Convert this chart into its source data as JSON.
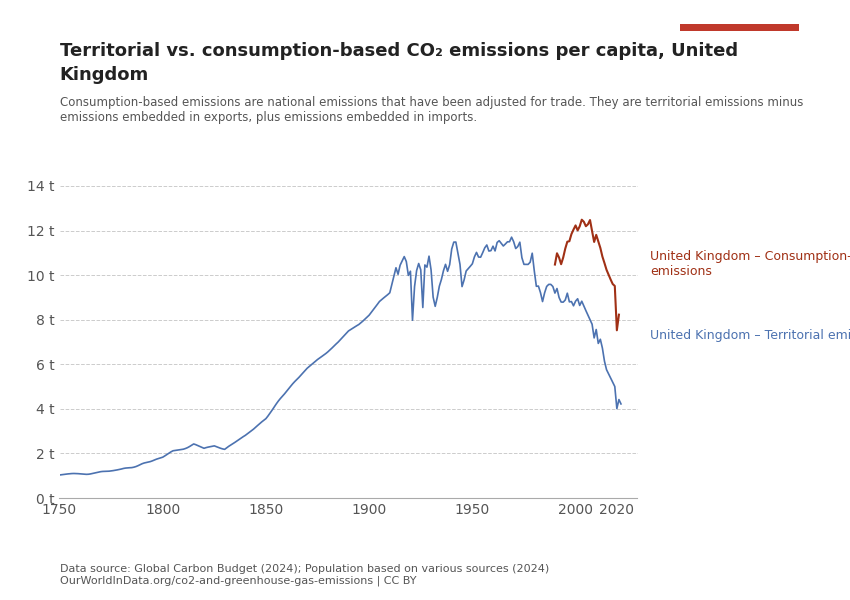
{
  "title_line1": "Territorial vs. consumption-based CO₂ emissions per capita, United",
  "title_line2": "Kingdom",
  "subtitle": "Consumption-based emissions are national emissions that have been adjusted for trade. They are territorial emissions minus\nemissions embedded in exports, plus emissions embedded in imports.",
  "datasource": "Data source: Global Carbon Budget (2024); Population based on various sources (2024)\nOurWorldInData.org/co2-and-greenhouse-gas-emissions | CC BY",
  "territorial_color": "#4C72B0",
  "consumption_color": "#A03015",
  "label_territorial": "United Kingdom – Territorial emissions",
  "label_consumption": "United Kingdom – Consumption-based\nemissions",
  "xlim": [
    1750,
    2030
  ],
  "ylim": [
    0,
    14
  ],
  "yticks": [
    0,
    2,
    4,
    6,
    8,
    10,
    12,
    14
  ],
  "ytick_labels": [
    "0 t",
    "2 t",
    "4 t",
    "6 t",
    "8 t",
    "10 t",
    "12 t",
    "14 t"
  ],
  "xticks": [
    1750,
    1800,
    1850,
    1900,
    1950,
    2000,
    2020
  ],
  "background_color": "#ffffff",
  "logo_bg": "#1a3a5c",
  "logo_text_color": "#ffffff",
  "logo_red": "#c0392b"
}
